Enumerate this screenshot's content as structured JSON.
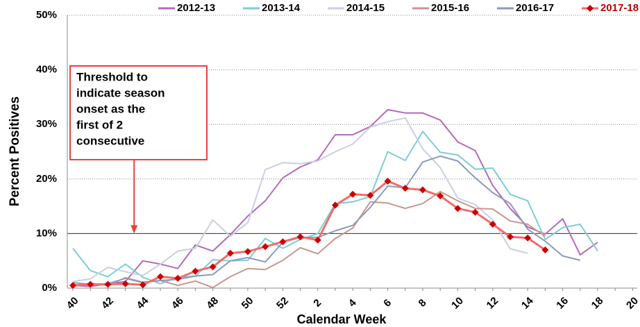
{
  "chart_data": {
    "type": "line",
    "y_axis_label": "Percent Positives",
    "x_axis_label": "Calendar Week",
    "categories": [
      "40",
      null,
      "42",
      null,
      "44",
      null,
      "46",
      null,
      "48",
      null,
      "50",
      null,
      "52",
      null,
      "2",
      null,
      "4",
      null,
      "6",
      null,
      "8",
      null,
      "10",
      null,
      "12",
      null,
      "14",
      null,
      "16",
      null,
      "18",
      null,
      "20"
    ],
    "ylim": [
      0,
      50
    ],
    "yticks": [
      {
        "value": 0,
        "label": "0%"
      },
      {
        "value": 10,
        "label": "10%"
      },
      {
        "value": 20,
        "label": "20%"
      },
      {
        "value": 30,
        "label": "30%"
      },
      {
        "value": 40,
        "label": "40%"
      },
      {
        "value": 50,
        "label": "50%"
      }
    ],
    "grid": true,
    "threshold": 10,
    "legend": "top",
    "annotation": {
      "lines": [
        "Threshold to",
        "indicate season",
        "onset  as the",
        "first  of 2",
        "consecutive"
      ],
      "color": "#e8413c",
      "arrow_at": 43.5
    },
    "series": [
      {
        "name": "2012-13",
        "color": "#b569b9",
        "values": [
          0.5,
          0.3,
          0.8,
          1.2,
          5.0,
          4.4,
          3.6,
          7.9,
          6.8,
          9.8,
          13.2,
          16.0,
          20.2,
          22.2,
          23.5,
          28.1,
          28.1,
          29.6,
          32.7,
          32.1,
          32.1,
          30.8,
          26.8,
          25.2,
          18.8,
          14.6,
          11.2,
          9.9,
          12.7,
          6.1,
          8.4,
          null,
          null
        ]
      },
      {
        "name": "2013-14",
        "color": "#7fcdd4",
        "values": [
          7.3,
          3.2,
          2.1,
          4.4,
          2.0,
          0.8,
          2.0,
          2.2,
          5.2,
          5.0,
          5.1,
          9.1,
          7.3,
          8.9,
          10.0,
          15.5,
          15.8,
          16.8,
          25.0,
          23.4,
          28.7,
          24.9,
          24.4,
          21.8,
          22.0,
          17.2,
          16.0,
          8.9,
          11.1,
          11.7,
          6.8,
          null,
          null
        ]
      },
      {
        "name": "2014-15",
        "color": "#c9cfe6",
        "values": [
          1.2,
          1.7,
          3.8,
          3.0,
          2.3,
          4.4,
          6.8,
          7.3,
          12.5,
          9.5,
          12.0,
          21.7,
          23.0,
          22.8,
          23.3,
          25.0,
          26.4,
          29.5,
          30.5,
          31.2,
          25.5,
          22.1,
          16.5,
          15.3,
          12.5,
          7.2,
          6.4,
          null,
          null,
          null,
          null,
          null,
          null
        ]
      },
      {
        "name": "2015-16",
        "color": "#c9968f",
        "values": [
          0.4,
          0.9,
          0.5,
          1.9,
          1.1,
          1.4,
          0.5,
          1.3,
          0.1,
          2.1,
          3.6,
          3.4,
          5.1,
          7.4,
          6.3,
          9.1,
          11.0,
          15.8,
          15.6,
          14.6,
          15.5,
          17.7,
          16.0,
          14.6,
          14.5,
          12.3,
          11.7,
          9.5,
          null,
          null,
          null,
          null,
          null
        ]
      },
      {
        "name": "2016-17",
        "color": "#8a9bbb",
        "values": [
          1.0,
          0.7,
          0.8,
          1.8,
          1.0,
          1.4,
          1.6,
          2.2,
          2.5,
          5.0,
          5.6,
          4.8,
          8.4,
          9.3,
          9.3,
          10.5,
          11.5,
          14.8,
          18.7,
          18.4,
          23.1,
          24.2,
          23.3,
          20.2,
          17.5,
          15.5,
          10.8,
          8.6,
          5.9,
          5.1,
          null,
          null,
          null
        ]
      },
      {
        "name": "2017-18",
        "color": "#f46b6b",
        "marker": "diamond",
        "marker_color": "#cc0000",
        "label_color": "#c00000",
        "values": [
          0.5,
          0.7,
          0.7,
          0.8,
          0.6,
          2.1,
          1.8,
          3.1,
          3.9,
          6.4,
          6.7,
          7.6,
          8.5,
          9.4,
          8.8,
          15.2,
          17.2,
          17.0,
          19.6,
          18.3,
          18.0,
          16.9,
          14.6,
          13.9,
          11.7,
          9.4,
          9.2,
          7.0,
          null,
          null,
          null,
          null,
          null
        ]
      }
    ]
  }
}
